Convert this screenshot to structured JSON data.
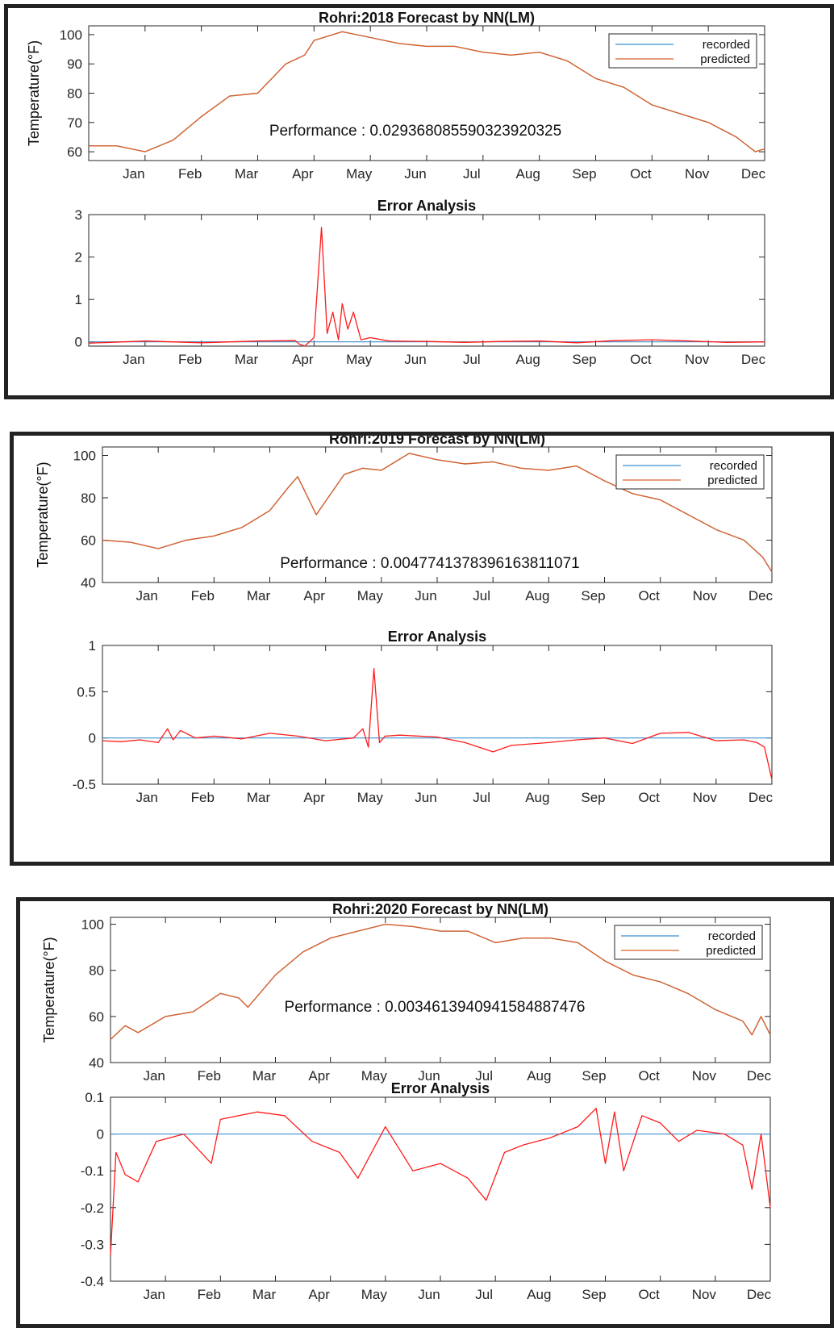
{
  "months": [
    "Jan",
    "Feb",
    "Mar",
    "Apr",
    "May",
    "Jun",
    "Jul",
    "Aug",
    "Sep",
    "Oct",
    "Nov",
    "Dec"
  ],
  "colors": {
    "recorded": "#3b8fd0",
    "predicted": "#d9602a",
    "error": "#ff1a1a",
    "zero": "#3b8fd0"
  },
  "chart_data": [
    {
      "type": "line",
      "title": "Rohri:2018 Forecast by NN(LM)",
      "ylabel": "Temperature(°F)",
      "ylim": [
        57,
        103
      ],
      "yticks": [
        60,
        70,
        80,
        90,
        100
      ],
      "performance_label": "Performance :",
      "performance_value": "0.029368085590323920325",
      "legend": {
        "placement": "top-right",
        "entries": [
          "recorded",
          "predicted"
        ]
      },
      "series": [
        {
          "name": "recorded",
          "x": [
            0,
            15,
            30,
            45,
            60,
            75,
            90,
            105,
            115,
            120,
            135,
            150,
            165,
            180,
            195,
            210,
            225,
            240,
            255,
            270,
            285,
            300,
            315,
            330,
            345,
            355,
            360
          ],
          "y": [
            62,
            62,
            60,
            64,
            72,
            79,
            80,
            90,
            93,
            98,
            101,
            99,
            97,
            96,
            96,
            94,
            93,
            94,
            91,
            85,
            82,
            76,
            73,
            70,
            65,
            60,
            61
          ]
        },
        {
          "name": "predicted",
          "x": [
            0,
            15,
            30,
            45,
            60,
            75,
            90,
            105,
            115,
            120,
            135,
            150,
            165,
            180,
            195,
            210,
            225,
            240,
            255,
            270,
            285,
            300,
            315,
            330,
            345,
            355,
            360
          ],
          "y": [
            62,
            62,
            60,
            64,
            72,
            79,
            80,
            90,
            93,
            98,
            101,
            99,
            97,
            96,
            96,
            94,
            93,
            94,
            91,
            85,
            82,
            76,
            73,
            70,
            65,
            60,
            61
          ]
        }
      ],
      "error": {
        "title": "Error Analysis",
        "ylim": [
          -0.1,
          3
        ],
        "yticks": [
          0,
          1,
          2,
          3
        ],
        "series": [
          {
            "name": "recorded",
            "x": [
              0,
              360
            ],
            "y": [
              0,
              0
            ]
          },
          {
            "name": "predicted",
            "x": [
              0,
              30,
              60,
              90,
              110,
              112,
              115,
              120,
              124,
              127,
              130,
              133,
              135,
              138,
              141,
              145,
              150,
              160,
              180,
              200,
              220,
              240,
              260,
              280,
              300,
              320,
              340,
              360
            ],
            "y": [
              -0.03,
              0.02,
              -0.02,
              0.02,
              0.03,
              -0.05,
              -0.1,
              0.1,
              2.7,
              0.2,
              0.7,
              0.05,
              0.9,
              0.3,
              0.7,
              0.05,
              0.1,
              0.02,
              0.01,
              -0.01,
              0.01,
              0.02,
              -0.02,
              0.03,
              0.05,
              0.02,
              -0.01,
              0.0
            ]
          }
        ]
      }
    },
    {
      "type": "line",
      "title": "Rohri:2019 Forecast by NN(LM)",
      "ylabel": "Temperature(°F)",
      "ylim": [
        40,
        104
      ],
      "yticks": [
        40,
        60,
        80,
        100
      ],
      "performance_label": "Performance :",
      "performance_value": "0.004774137839616381107​1",
      "legend": {
        "placement": "top-right",
        "entries": [
          "recorded",
          "predicted"
        ]
      },
      "series": [
        {
          "name": "recorded",
          "x": [
            0,
            15,
            30,
            45,
            60,
            75,
            90,
            100,
            105,
            115,
            130,
            140,
            150,
            165,
            180,
            195,
            210,
            225,
            240,
            255,
            270,
            285,
            300,
            315,
            330,
            345,
            355,
            360
          ],
          "y": [
            60,
            59,
            56,
            60,
            62,
            66,
            74,
            85,
            90,
            72,
            91,
            94,
            93,
            101,
            98,
            96,
            97,
            94,
            93,
            95,
            88,
            82,
            79,
            72,
            65,
            60,
            52,
            45
          ]
        },
        {
          "name": "predicted",
          "x": [
            0,
            15,
            30,
            45,
            60,
            75,
            90,
            100,
            105,
            115,
            130,
            140,
            150,
            165,
            180,
            195,
            210,
            225,
            240,
            255,
            270,
            285,
            300,
            315,
            330,
            345,
            355,
            360
          ],
          "y": [
            60,
            59,
            56,
            60,
            62,
            66,
            74,
            85,
            90,
            72,
            91,
            94,
            93,
            101,
            98,
            96,
            97,
            94,
            93,
            95,
            88,
            82,
            79,
            72,
            65,
            60,
            52,
            45
          ]
        }
      ],
      "error": {
        "title": "Error Analysis",
        "ylim": [
          -0.5,
          1
        ],
        "yticks": [
          -0.5,
          0,
          0.5,
          1
        ],
        "series": [
          {
            "name": "recorded",
            "x": [
              0,
              360
            ],
            "y": [
              0,
              0
            ]
          },
          {
            "name": "predicted",
            "x": [
              0,
              10,
              20,
              30,
              35,
              38,
              42,
              50,
              60,
              75,
              90,
              105,
              120,
              135,
              140,
              143,
              146,
              149,
              152,
              160,
              180,
              195,
              210,
              220,
              240,
              255,
              270,
              285,
              300,
              315,
              330,
              345,
              352,
              356,
              360
            ],
            "y": [
              -0.03,
              -0.04,
              -0.02,
              -0.05,
              0.1,
              -0.02,
              0.08,
              0.0,
              0.02,
              -0.01,
              0.05,
              0.02,
              -0.03,
              0.0,
              0.1,
              -0.1,
              0.75,
              -0.05,
              0.02,
              0.03,
              0.01,
              -0.05,
              -0.15,
              -0.08,
              -0.05,
              -0.02,
              0.0,
              -0.06,
              0.05,
              0.06,
              -0.03,
              -0.02,
              -0.05,
              -0.1,
              -0.45
            ]
          }
        ]
      }
    },
    {
      "type": "line",
      "title": "Rohri:2020 Forecast by NN(LM)",
      "ylabel": "Temperature(°F)",
      "ylim": [
        40,
        103
      ],
      "yticks": [
        40,
        60,
        80,
        100
      ],
      "performance_label": "Performance :",
      "performance_value": "0.003461394094158488747​6",
      "legend": {
        "placement": "top-right",
        "entries": [
          "recorded",
          "predicted"
        ]
      },
      "series": [
        {
          "name": "recorded",
          "x": [
            0,
            8,
            15,
            30,
            45,
            60,
            70,
            75,
            90,
            105,
            120,
            135,
            150,
            165,
            180,
            195,
            210,
            225,
            240,
            255,
            270,
            285,
            300,
            315,
            330,
            345,
            350,
            355,
            360
          ],
          "y": [
            50,
            56,
            53,
            60,
            62,
            70,
            68,
            64,
            78,
            88,
            94,
            97,
            100,
            99,
            97,
            97,
            92,
            94,
            94,
            92,
            84,
            78,
            75,
            70,
            63,
            58,
            52,
            60,
            52
          ]
        },
        {
          "name": "predicted",
          "x": [
            0,
            8,
            15,
            30,
            45,
            60,
            70,
            75,
            90,
            105,
            120,
            135,
            150,
            165,
            180,
            195,
            210,
            225,
            240,
            255,
            270,
            285,
            300,
            315,
            330,
            345,
            350,
            355,
            360
          ],
          "y": [
            50,
            56,
            53,
            60,
            62,
            70,
            68,
            64,
            78,
            88,
            94,
            97,
            100,
            99,
            97,
            97,
            92,
            94,
            94,
            92,
            84,
            78,
            75,
            70,
            63,
            58,
            52,
            60,
            52
          ]
        }
      ],
      "error": {
        "title": "Error Analysis",
        "ylim": [
          -0.4,
          0.1
        ],
        "yticks": [
          -0.4,
          -0.3,
          -0.2,
          -0.1,
          0,
          0.1
        ],
        "series": [
          {
            "name": "recorded",
            "x": [
              0,
              360
            ],
            "y": [
              0,
              0
            ]
          },
          {
            "name": "predicted",
            "x": [
              0,
              3,
              8,
              15,
              25,
              40,
              55,
              60,
              70,
              80,
              95,
              110,
              125,
              135,
              150,
              165,
              180,
              195,
              205,
              215,
              225,
              240,
              255,
              265,
              270,
              275,
              280,
              290,
              300,
              310,
              320,
              335,
              345,
              350,
              355,
              360
            ],
            "y": [
              -0.33,
              -0.05,
              -0.11,
              -0.13,
              -0.02,
              0.0,
              -0.08,
              0.04,
              0.05,
              0.06,
              0.05,
              -0.02,
              -0.05,
              -0.12,
              0.02,
              -0.1,
              -0.08,
              -0.12,
              -0.18,
              -0.05,
              -0.03,
              -0.01,
              0.02,
              0.07,
              -0.08,
              0.06,
              -0.1,
              0.05,
              0.03,
              -0.02,
              0.01,
              0.0,
              -0.03,
              -0.15,
              0.0,
              -0.2
            ]
          }
        ]
      }
    }
  ]
}
